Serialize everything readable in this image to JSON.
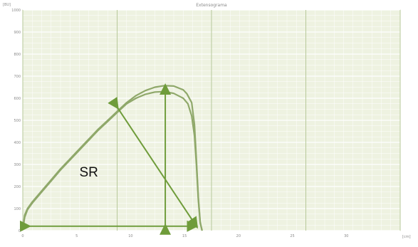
{
  "chart_data": {
    "type": "line",
    "title": "Extensograma",
    "ylabel": "[BU]",
    "xlabel": "[cm]",
    "xlim": [
      0,
      40
    ],
    "ylim": [
      0,
      1000
    ],
    "x_ticks": [
      0,
      5,
      10,
      15,
      20,
      25,
      30
    ],
    "y_ticks": [
      0,
      100,
      200,
      300,
      400,
      500,
      600,
      700,
      800,
      900,
      1000
    ],
    "x_tick_labels": [
      "0",
      "5",
      "10",
      "15",
      "20",
      "25",
      "30"
    ],
    "y_tick_labels": [
      "0",
      "100",
      "200",
      "300",
      "400",
      "500",
      "600",
      "700",
      "800",
      "900",
      "1000"
    ],
    "grid": true,
    "series": [
      {
        "color": "#8fa86a",
        "x": [
          0,
          0.2,
          0.5,
          1,
          2,
          3,
          4,
          5,
          6,
          7,
          8,
          9,
          10,
          11,
          12,
          13,
          14,
          15,
          16,
          17,
          17.4,
          17.9,
          18.2,
          18.4,
          18.6,
          18.8,
          19.0
        ],
        "y": [
          5,
          70,
          100,
          130,
          180,
          230,
          280,
          325,
          370,
          415,
          460,
          500,
          540,
          580,
          612,
          635,
          650,
          657,
          655,
          638,
          620,
          580,
          480,
          320,
          150,
          40,
          0
        ]
      },
      {
        "color": "#8fa86a",
        "x": [
          0,
          0.2,
          0.5,
          1,
          2,
          3,
          4,
          5,
          6,
          7,
          8,
          9,
          10,
          11,
          12,
          13,
          14,
          15,
          16,
          17,
          17.5,
          17.9,
          18.2,
          18.4,
          18.6,
          18.8,
          19.0
        ],
        "y": [
          5,
          60,
          95,
          125,
          175,
          225,
          275,
          320,
          365,
          410,
          455,
          495,
          535,
          575,
          600,
          618,
          628,
          630,
          622,
          600,
          575,
          520,
          430,
          300,
          140,
          35,
          0
        ]
      }
    ],
    "annotations": [
      {
        "kind": "text",
        "text": "SR",
        "x": 6.0,
        "y": 245
      }
    ],
    "arrows": [
      {
        "kind": "double-arrow",
        "from": [
          0.6,
          20
        ],
        "to": [
          18.3,
          20
        ]
      },
      {
        "kind": "double-arrow",
        "from": [
          15.1,
          20
        ],
        "to": [
          15.1,
          655
        ]
      },
      {
        "kind": "double-arrow",
        "from": [
          10.0,
          560
        ],
        "to": [
          18.4,
          20
        ]
      }
    ],
    "colors": {
      "plot_background": "#eef2e1",
      "grid": "#ffffff",
      "major_vertical": "#b7c89a",
      "curve": "#8fa86a",
      "arrow": "#6f9c3a",
      "frame": "#c8d1b6"
    }
  }
}
